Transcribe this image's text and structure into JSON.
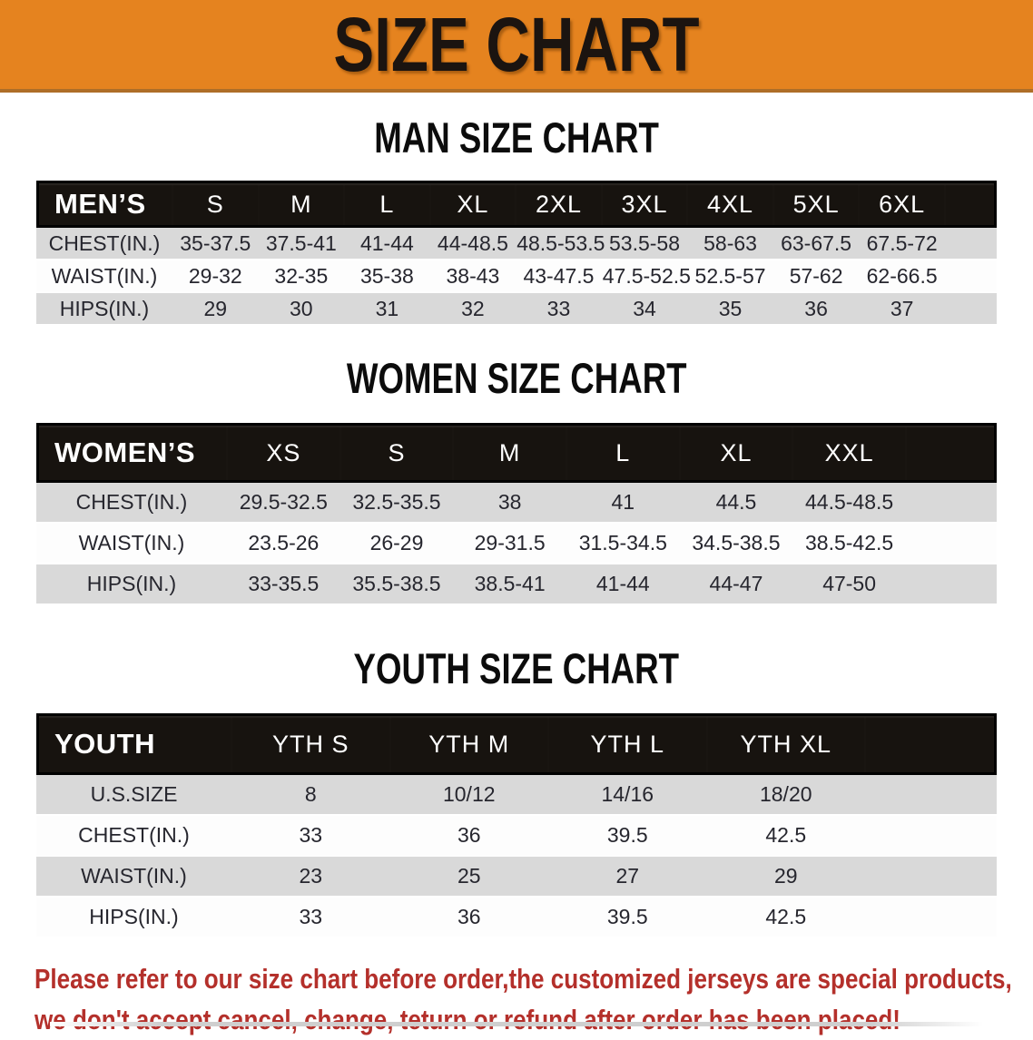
{
  "banner": {
    "title": "SIZE CHART",
    "bg_color": "#E5831F",
    "text_color": "#1B1410"
  },
  "sections": [
    {
      "id": "men",
      "title": "MAN SIZE CHART",
      "header_label": "MEN’S",
      "columns": [
        "S",
        "M",
        "L",
        "XL",
        "2XL",
        "3XL",
        "4XL",
        "5XL",
        "6XL"
      ],
      "rows": [
        {
          "label": "CHEST(IN.)",
          "values": [
            "35-37.5",
            "37.5-41",
            "41-44",
            "44-48.5",
            "48.5-53.5",
            "53.5-58",
            "58-63",
            "63-67.5",
            "67.5-72"
          ]
        },
        {
          "label": "WAIST(IN.)",
          "values": [
            "29-32",
            "32-35",
            "35-38",
            "38-43",
            "43-47.5",
            "47.5-52.5",
            "52.5-57",
            "57-62",
            "62-66.5"
          ]
        },
        {
          "label": "HIPS(IN.)",
          "values": [
            "29",
            "30",
            "31",
            "32",
            "33",
            "34",
            "35",
            "36",
            "37"
          ]
        }
      ]
    },
    {
      "id": "women",
      "title": "WOMEN SIZE CHART",
      "header_label": "WOMEN’S",
      "columns": [
        "XS",
        "S",
        "M",
        "L",
        "XL",
        "XXL"
      ],
      "rows": [
        {
          "label": "CHEST(IN.)",
          "values": [
            "29.5-32.5",
            "32.5-35.5",
            "38",
            "41",
            "44.5",
            "44.5-48.5"
          ]
        },
        {
          "label": "WAIST(IN.)",
          "values": [
            "23.5-26",
            "26-29",
            "29-31.5",
            "31.5-34.5",
            "34.5-38.5",
            "38.5-42.5"
          ]
        },
        {
          "label": "HIPS(IN.)",
          "values": [
            "33-35.5",
            "35.5-38.5",
            "38.5-41",
            "41-44",
            "44-47",
            "47-50"
          ]
        }
      ]
    },
    {
      "id": "youth",
      "title": "YOUTH SIZE CHART",
      "header_label": "YOUTH",
      "columns": [
        "YTH S",
        "YTH M",
        "YTH L",
        "YTH XL"
      ],
      "rows": [
        {
          "label": "U.S.SIZE",
          "values": [
            "8",
            "10/12",
            "14/16",
            "18/20"
          ]
        },
        {
          "label": "CHEST(IN.)",
          "values": [
            "33",
            "36",
            "39.5",
            "42.5"
          ]
        },
        {
          "label": "WAIST(IN.)",
          "values": [
            "23",
            "25",
            "27",
            "29"
          ]
        },
        {
          "label": "HIPS(IN.)",
          "values": [
            "33",
            "36",
            "39.5",
            "42.5"
          ]
        }
      ]
    }
  ],
  "disclaimer": {
    "line1": "Please refer to our size chart before order,the customized jerseys are special products,",
    "line2": "we don't accept cancel, change, teturn or refund after order has been placed!",
    "color": "#B4302B"
  }
}
